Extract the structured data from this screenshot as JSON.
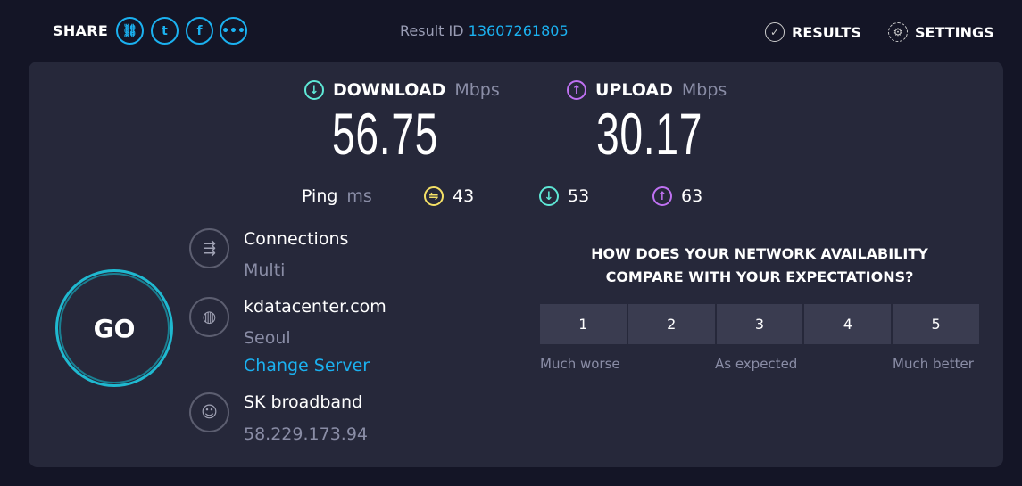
{
  "header": {
    "share_label": "SHARE",
    "share_icons": [
      "link-icon",
      "twitter-icon",
      "facebook-icon",
      "more-icon"
    ],
    "result_id_label": "Result ID",
    "result_id": "13607261805",
    "results_label": "RESULTS",
    "settings_label": "SETTINGS"
  },
  "download": {
    "label": "DOWNLOAD",
    "unit": "Mbps",
    "value": "56.75",
    "color": "#5ee8d6"
  },
  "upload": {
    "label": "UPLOAD",
    "unit": "Mbps",
    "value": "30.17",
    "color": "#bf71f2"
  },
  "ping": {
    "label": "Ping",
    "unit": "ms",
    "idle": "43",
    "download": "53",
    "upload": "63",
    "idle_color": "#f4e066"
  },
  "go_label": "GO",
  "connections": {
    "label": "Connections",
    "value": "Multi"
  },
  "server": {
    "name": "kdatacenter.com",
    "location": "Seoul",
    "change_label": "Change Server"
  },
  "isp": {
    "name": "SK broadband",
    "ip": "58.229.173.94"
  },
  "survey": {
    "question_line1": "HOW DOES YOUR NETWORK AVAILABILITY",
    "question_line2": "COMPARE WITH YOUR EXPECTATIONS?",
    "options": [
      "1",
      "2",
      "3",
      "4",
      "5"
    ],
    "low_label": "Much worse",
    "mid_label": "As expected",
    "high_label": "Much better"
  }
}
